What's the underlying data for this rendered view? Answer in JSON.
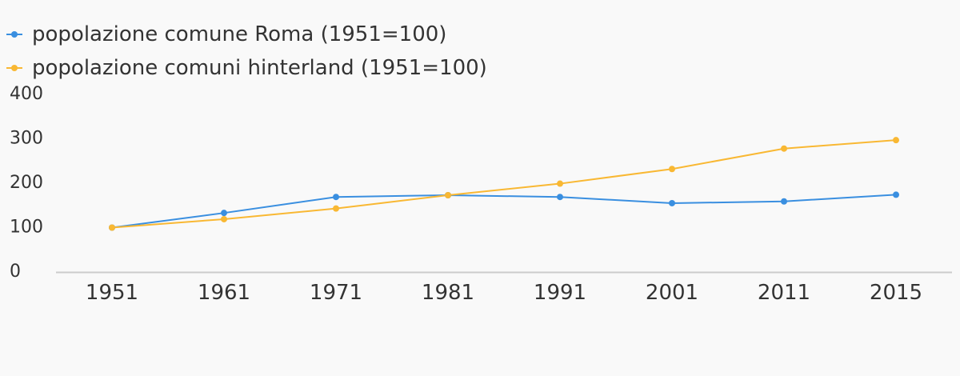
{
  "chart_data": {
    "type": "line",
    "categories": [
      "1951",
      "1961",
      "1971",
      "1981",
      "1991",
      "2001",
      "2011",
      "2015"
    ],
    "series": [
      {
        "name": "popolazione comune Roma (1951=100)",
        "color": "#3a8fe0",
        "values": [
          100,
          133,
          169,
          173,
          169,
          155,
          159,
          174
        ]
      },
      {
        "name": "popolazione comuni hinterland (1951=100)",
        "color": "#f9b833",
        "values": [
          100,
          119,
          143,
          173,
          199,
          232,
          278,
          297
        ]
      }
    ],
    "ylim": [
      0,
      400
    ],
    "yticks": [
      "0",
      "100",
      "200",
      "300",
      "400"
    ],
    "grid": false,
    "legend_position": "top-left",
    "title": "",
    "xlabel": "",
    "ylabel": ""
  }
}
